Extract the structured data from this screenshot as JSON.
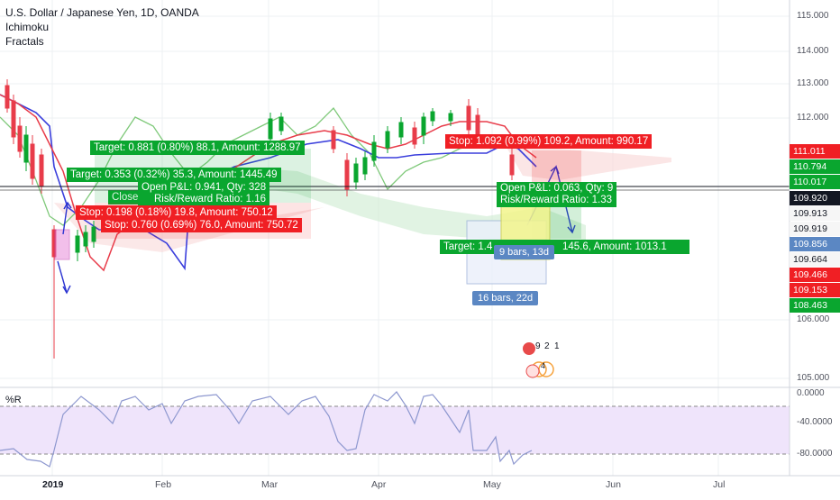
{
  "legend": {
    "symbol": "U.S. Dollar / Japanese Yen, 1D, OANDA",
    "indicators": [
      "Ichimoku",
      "Fractals"
    ]
  },
  "price_axis": [
    "115.000",
    "114.000",
    "113.000",
    "112.000",
    "106.000",
    "105.000"
  ],
  "price_tags": [
    {
      "value": "111.011",
      "color": "#f01f24"
    },
    {
      "value": "110.794",
      "color": "#0aa62f"
    },
    {
      "value": "110.017",
      "color": "#0aa62f"
    },
    {
      "value": "109.920",
      "color": "#131722"
    },
    {
      "value": "109.913",
      "color": "#f6f6f6"
    },
    {
      "value": "109.919",
      "color": "#f6f6f6"
    },
    {
      "value": "109.856",
      "color": "#5b87c3"
    },
    {
      "value": "109.664",
      "color": "#f6f6f6"
    },
    {
      "value": "109.466",
      "color": "#f01f24"
    },
    {
      "value": "109.153",
      "color": "#f01f24"
    },
    {
      "value": "108.463",
      "color": "#0aa62f"
    }
  ],
  "time_axis": [
    "2019",
    "Feb",
    "Mar",
    "Apr",
    "May",
    "Jun",
    "Jul"
  ],
  "positions": {
    "target1": "Target: 0.881 (0.80%) 88.1, Amount: 1288.97",
    "target2": "Target: 0.353 (0.32%) 35.3, Amount: 1445.49",
    "open_pl_1": "Open P&L: 0.941, Qty: 328",
    "rr_1": "Risk/Reward Ratio: 1.16",
    "closed": "Closed",
    "stop1": "Stop: 0.198 (0.18%) 19.8, Amount: 750.12",
    "stop2": "Stop: 0.760 (0.69%) 76.0, Amount: 750.72",
    "stop3": "Stop: 1.092 (0.99%) 109.2, Amount: 990.17",
    "open_pl_2": "Open P&L: 0.063, Qty: 9",
    "rr_2": "Risk/Reward Ratio: 1.33",
    "target3": "Target: 1.4",
    "target3b": "145.6, Amount: 1013.1",
    "bars1": "9 bars, 13d",
    "bars2": "16 bars, 22d"
  },
  "events": {
    "count1": "9",
    "count2": "2",
    "count3": "1",
    "count4": "4"
  },
  "oscillator": {
    "label": "%R",
    "axis": [
      "0.0000",
      "-40.0000",
      "-80.0000"
    ]
  },
  "colors": {
    "green": "#0aa62f",
    "red": "#f01f24",
    "blue_line": "#3b3fdc",
    "red_line": "#e83c4a",
    "lagging": "#7fc97a",
    "osc_fill": "#efe4fb",
    "osc_line": "#8d97cf"
  }
}
